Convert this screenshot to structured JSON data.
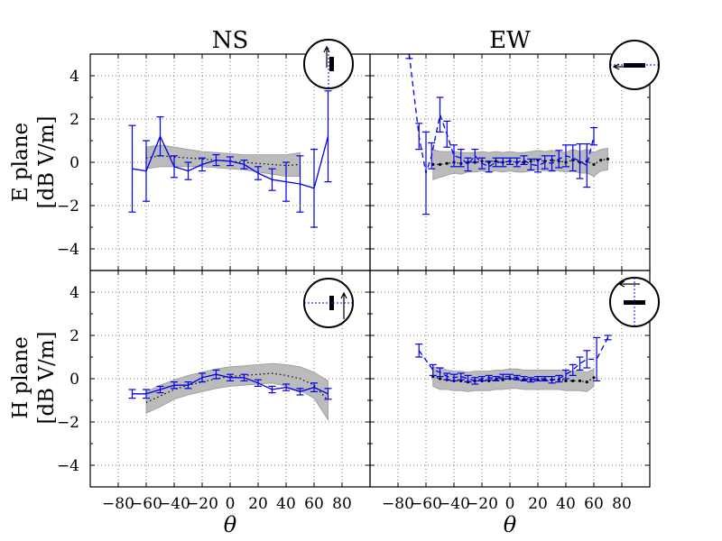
{
  "figure": {
    "column_titles": [
      "NS",
      "EW"
    ],
    "row_labels": [
      {
        "line1": "E plane",
        "line2": "[dB V/m]"
      },
      {
        "line1": "H plane",
        "line2": "[dB V/m]"
      }
    ],
    "xlabel": "θ",
    "x_ticks": [
      "−80",
      "−60",
      "−40",
      "−20",
      "0",
      "20",
      "40",
      "60",
      "80"
    ],
    "y_ticks": [
      "−4",
      "−2",
      "0",
      "2",
      "4"
    ],
    "colors": {
      "data": "#0000ee",
      "model_band": "#bbbbbb",
      "model_line": "#000000",
      "grid": "#555555"
    }
  },
  "chart_data": [
    {
      "type": "line",
      "panel": "E plane / NS",
      "xlim": [
        -100,
        100
      ],
      "ylim": [
        -5,
        5
      ],
      "grid": true,
      "line_style": "solid",
      "inset_icon": "antenna-orientation-icon",
      "measured": {
        "x": [
          -70,
          -60,
          -50,
          -40,
          -30,
          -20,
          -10,
          0,
          10,
          20,
          30,
          40,
          50,
          60,
          70
        ],
        "y": [
          -0.3,
          -0.4,
          1.2,
          -0.2,
          -0.4,
          -0.1,
          0.1,
          0.05,
          -0.1,
          -0.5,
          -0.8,
          -0.9,
          -1.0,
          -1.2,
          1.2
        ],
        "err": [
          2.0,
          1.4,
          0.9,
          0.5,
          0.4,
          0.3,
          0.25,
          0.2,
          0.2,
          0.3,
          0.5,
          0.9,
          1.3,
          1.8,
          2.1
        ]
      },
      "model": {
        "x": [
          -60,
          -50,
          -40,
          -30,
          -20,
          -10,
          0,
          10,
          20,
          30,
          40,
          50
        ],
        "y": [
          0.2,
          0.3,
          0.25,
          0.2,
          0.15,
          0.1,
          0.05,
          0.0,
          -0.05,
          -0.1,
          -0.15,
          -0.1
        ],
        "band": [
          0.5,
          0.5,
          0.45,
          0.4,
          0.35,
          0.35,
          0.35,
          0.35,
          0.4,
          0.45,
          0.5,
          0.55
        ]
      }
    },
    {
      "type": "line",
      "panel": "E plane / EW",
      "xlim": [
        -100,
        100
      ],
      "ylim": [
        -5,
        5
      ],
      "grid": true,
      "line_style": "dashed",
      "inset_icon": "antenna-orientation-icon",
      "measured": {
        "x": [
          -72,
          -65,
          -60,
          -56,
          -50,
          -45,
          -40,
          -35,
          -30,
          -25,
          -20,
          -15,
          -10,
          -5,
          0,
          5,
          10,
          15,
          20,
          25,
          30,
          35,
          40,
          45,
          50,
          55,
          60
        ],
        "y": [
          5.0,
          1.2,
          -0.5,
          0.3,
          2.2,
          1.3,
          0.3,
          0.2,
          -0.1,
          0.3,
          -0.05,
          -0.2,
          0.0,
          0.0,
          0.05,
          0.0,
          0.1,
          -0.1,
          -0.15,
          0.0,
          -0.05,
          0.15,
          0.3,
          0.2,
          0.05,
          -0.15,
          1.2
        ],
        "err": [
          0.2,
          0.6,
          1.9,
          0.6,
          0.8,
          0.6,
          0.5,
          0.4,
          0.3,
          0.3,
          0.25,
          0.25,
          0.2,
          0.2,
          0.15,
          0.2,
          0.2,
          0.25,
          0.3,
          0.3,
          0.35,
          0.4,
          0.5,
          0.6,
          0.8,
          1.0,
          0.4
        ]
      },
      "model": {
        "x": [
          -55,
          -50,
          -45,
          -40,
          -35,
          -30,
          -25,
          -20,
          -15,
          -10,
          -5,
          0,
          5,
          10,
          15,
          20,
          25,
          30,
          35,
          40,
          45,
          50,
          55,
          60,
          65,
          70
        ],
        "y": [
          -0.1,
          -0.1,
          -0.05,
          0.0,
          -0.05,
          0.0,
          0.0,
          0.05,
          0.0,
          0.05,
          0.0,
          0.05,
          0.0,
          0.0,
          0.05,
          0.1,
          0.05,
          0.1,
          0.05,
          0.0,
          0.1,
          0.0,
          0.05,
          -0.1,
          0.1,
          0.15
        ],
        "band": [
          0.7,
          0.6,
          0.55,
          0.5,
          0.5,
          0.45,
          0.45,
          0.45,
          0.45,
          0.45,
          0.45,
          0.45,
          0.45,
          0.45,
          0.45,
          0.45,
          0.45,
          0.45,
          0.45,
          0.45,
          0.5,
          0.5,
          0.55,
          0.55,
          0.5,
          0.5
        ]
      }
    },
    {
      "type": "line",
      "panel": "H plane / NS",
      "xlim": [
        -100,
        100
      ],
      "ylim": [
        -5,
        5
      ],
      "grid": true,
      "line_style": "solid",
      "inset_icon": "antenna-orientation-icon",
      "measured": {
        "x": [
          -70,
          -60,
          -50,
          -40,
          -30,
          -20,
          -10,
          0,
          10,
          20,
          30,
          40,
          50,
          60,
          70
        ],
        "y": [
          -0.7,
          -0.7,
          -0.5,
          -0.3,
          -0.3,
          0.05,
          0.2,
          0.05,
          0.05,
          -0.2,
          -0.5,
          -0.4,
          -0.6,
          -0.4,
          -0.7
        ],
        "err": [
          0.2,
          0.2,
          0.15,
          0.15,
          0.15,
          0.2,
          0.2,
          0.15,
          0.15,
          0.15,
          0.15,
          0.15,
          0.15,
          0.2,
          0.25
        ]
      },
      "model": {
        "x": [
          -60,
          -50,
          -40,
          -30,
          -20,
          -10,
          0,
          10,
          20,
          30,
          40,
          50,
          60,
          70
        ],
        "y": [
          -1.1,
          -0.8,
          -0.5,
          -0.3,
          -0.15,
          0.0,
          0.1,
          0.15,
          0.2,
          0.25,
          0.15,
          0.0,
          -0.3,
          -1.0
        ],
        "band": [
          0.5,
          0.5,
          0.45,
          0.45,
          0.45,
          0.45,
          0.45,
          0.45,
          0.45,
          0.45,
          0.5,
          0.55,
          0.6,
          0.9
        ]
      }
    },
    {
      "type": "line",
      "panel": "H plane / EW",
      "xlim": [
        -100,
        100
      ],
      "ylim": [
        -5,
        5
      ],
      "grid": true,
      "line_style": "dashed",
      "inset_icon": "antenna-orientation-icon",
      "measured": {
        "x": [
          -65,
          -55,
          -50,
          -45,
          -40,
          -35,
          -30,
          -25,
          -20,
          -15,
          -10,
          -5,
          0,
          5,
          10,
          15,
          20,
          25,
          30,
          35,
          40,
          45,
          50,
          55,
          62,
          70
        ],
        "y": [
          1.3,
          0.4,
          0.3,
          0.1,
          0.05,
          0.1,
          0.0,
          -0.1,
          0.0,
          0.05,
          0.0,
          0.1,
          0.1,
          0.05,
          0.0,
          -0.05,
          0.0,
          0.0,
          -0.05,
          0.0,
          0.2,
          0.4,
          0.7,
          0.9,
          0.9,
          1.9
        ],
        "err": [
          0.3,
          0.25,
          0.2,
          0.15,
          0.15,
          0.15,
          0.15,
          0.15,
          0.1,
          0.1,
          0.1,
          0.1,
          0.1,
          0.1,
          0.1,
          0.1,
          0.1,
          0.1,
          0.15,
          0.15,
          0.2,
          0.25,
          0.3,
          0.4,
          1.0,
          0.1
        ]
      },
      "model": {
        "x": [
          -55,
          -50,
          -45,
          -40,
          -35,
          -30,
          -25,
          -20,
          -15,
          -10,
          -5,
          0,
          5,
          10,
          15,
          20,
          25,
          30,
          35,
          40,
          45,
          50,
          55,
          60
        ],
        "y": [
          0.1,
          0.0,
          -0.05,
          -0.1,
          -0.1,
          -0.15,
          -0.1,
          -0.1,
          -0.1,
          -0.05,
          -0.05,
          0.0,
          0.0,
          -0.05,
          -0.05,
          -0.05,
          -0.05,
          -0.05,
          -0.05,
          -0.1,
          -0.1,
          -0.1,
          -0.15,
          0.05
        ],
        "band": [
          0.45,
          0.5,
          0.45,
          0.45,
          0.45,
          0.45,
          0.45,
          0.45,
          0.45,
          0.45,
          0.45,
          0.45,
          0.45,
          0.45,
          0.45,
          0.45,
          0.45,
          0.45,
          0.45,
          0.45,
          0.45,
          0.45,
          0.45,
          0.4
        ]
      }
    }
  ]
}
